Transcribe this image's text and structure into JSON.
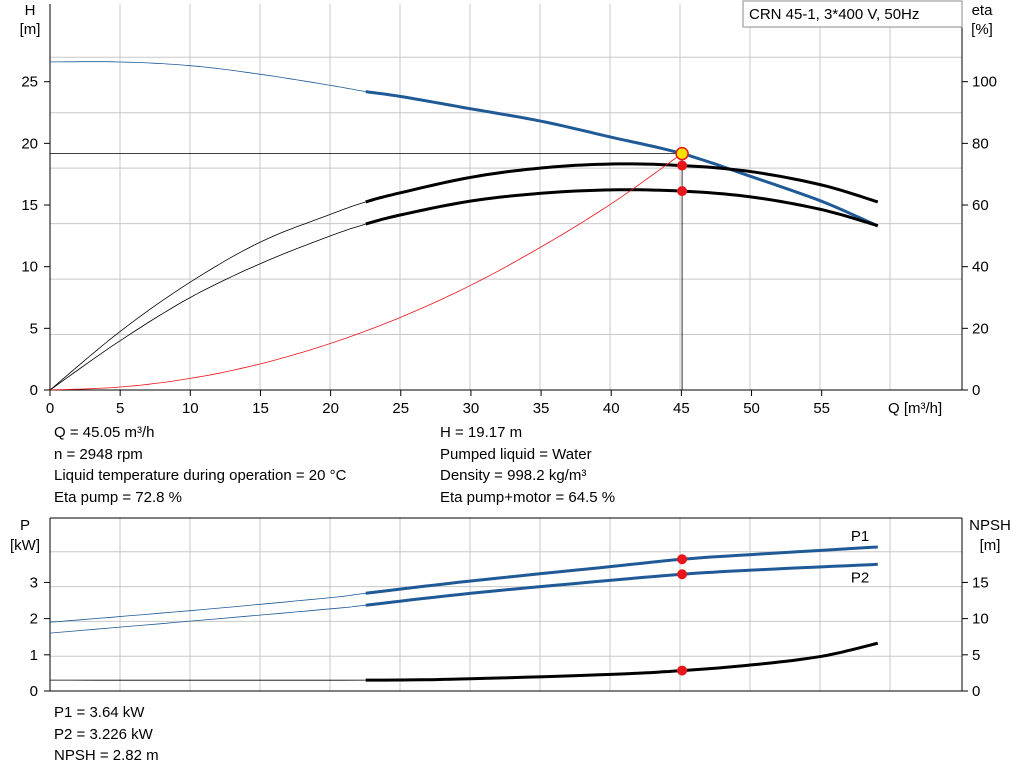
{
  "title": "CRN 45-1, 3*400 V, 50Hz",
  "colors": {
    "blue": "#1f5a96",
    "red": "#e8151b",
    "grid": "#c8c8c8",
    "yellow": "#f5e100",
    "dark": "#000000"
  },
  "info_top_left": [
    "Q = 45.05 m³/h",
    "n = 2948 rpm",
    "Liquid temperature during operation = 20 °C",
    "Eta pump = 72.8 %"
  ],
  "info_top_right": [
    "H = 19.17 m",
    "Pumped liquid = Water",
    "Density = 998.2 kg/m³",
    "Eta pump+motor = 64.5 %"
  ],
  "info_bottom": [
    "P1 = 3.64 kW",
    "P2 = 3.226 kW",
    "NPSH = 2.82 m"
  ],
  "chart_data": [
    {
      "type": "line",
      "xlabel": "Q [m³/h]",
      "ylabel": "H\n[m]",
      "y2label": "eta\n[%]",
      "xlim": [
        0,
        65
      ],
      "ylim": [
        0,
        31.3
      ],
      "y2lim": [
        0,
        125.2
      ],
      "xticks": [
        0,
        5,
        10,
        15,
        20,
        25,
        30,
        35,
        40,
        45,
        50,
        55
      ],
      "yticks": [
        0,
        5,
        10,
        15,
        20,
        25
      ],
      "y2ticks": [
        0,
        20,
        40,
        60,
        80,
        100
      ],
      "grid": true,
      "operating_point": {
        "Q": 45.05,
        "H": 19.17,
        "eta_pump": 72.8,
        "eta_total": 64.5
      },
      "series": [
        {
          "curve": "H",
          "color": "blue",
          "axis": "y",
          "thick_from": 22.5,
          "x": [
            0,
            5,
            10,
            15,
            20,
            22.5,
            25,
            30,
            35,
            40,
            45.05,
            50,
            55,
            59
          ],
          "y": [
            26.6,
            26.6,
            26.3,
            25.6,
            24.7,
            24.2,
            23.8,
            22.8,
            21.8,
            20.5,
            19.17,
            17.3,
            15.3,
            13.3
          ]
        },
        {
          "curve": "eta_pump",
          "color": "dark",
          "axis": "y2",
          "thick_from": 22.5,
          "x": [
            0,
            5,
            10,
            15,
            20,
            22.5,
            25,
            30,
            35,
            40,
            45.05,
            50,
            55,
            59
          ],
          "y": [
            0,
            19,
            35,
            48,
            57,
            61,
            64,
            69,
            72,
            73.3,
            72.8,
            70.8,
            66.5,
            61
          ]
        },
        {
          "curve": "eta_total",
          "color": "dark",
          "axis": "y2",
          "thick_from": 22.5,
          "x": [
            0,
            5,
            10,
            15,
            20,
            22.5,
            25,
            30,
            35,
            40,
            45.05,
            50,
            55,
            59
          ],
          "y": [
            0,
            16,
            30,
            41,
            50,
            53.8,
            56.8,
            61.3,
            63.8,
            64.9,
            64.5,
            62.6,
            58.5,
            53.3
          ]
        },
        {
          "curve": "system",
          "color": "red",
          "axis": "y",
          "x": [
            0,
            5,
            10,
            15,
            20,
            25,
            30,
            35,
            40,
            45.05
          ],
          "y": [
            0,
            0.24,
            0.94,
            2.12,
            3.78,
            5.9,
            8.5,
            11.6,
            15.1,
            19.17
          ]
        }
      ]
    },
    {
      "type": "line",
      "ylabel": "P\n[kW]",
      "y2label": "NPSH\n[m]",
      "xlim": [
        0,
        65
      ],
      "ylim": [
        0,
        4.78
      ],
      "y2lim": [
        0,
        23.9
      ],
      "yticks": [
        0,
        1,
        2,
        3
      ],
      "y2ticks": [
        0,
        5,
        10,
        15
      ],
      "grid": true,
      "operating_point": {
        "Q": 45.05,
        "P1": 3.64,
        "P2": 3.226,
        "NPSH": 2.82
      },
      "series": [
        {
          "name": "P1",
          "color": "blue",
          "axis": "y",
          "thick_from": 22.5,
          "x": [
            0,
            10,
            20,
            22.5,
            30,
            40,
            45.05,
            50,
            59
          ],
          "y": [
            1.9,
            2.22,
            2.58,
            2.7,
            3.04,
            3.44,
            3.64,
            3.77,
            3.98
          ]
        },
        {
          "name": "P2",
          "color": "blue",
          "axis": "y",
          "thick_from": 22.5,
          "x": [
            0,
            10,
            20,
            22.5,
            30,
            40,
            45.05,
            50,
            59
          ],
          "y": [
            1.6,
            1.93,
            2.27,
            2.37,
            2.7,
            3.06,
            3.226,
            3.34,
            3.5
          ]
        },
        {
          "curve": "NPSH",
          "color": "dark",
          "axis": "y2",
          "thick_from": 22.5,
          "x": [
            0,
            22.5,
            30,
            40,
            45.05,
            50,
            55,
            59
          ],
          "y": [
            1.5,
            1.5,
            1.7,
            2.3,
            2.82,
            3.6,
            4.8,
            6.6
          ]
        }
      ]
    }
  ]
}
